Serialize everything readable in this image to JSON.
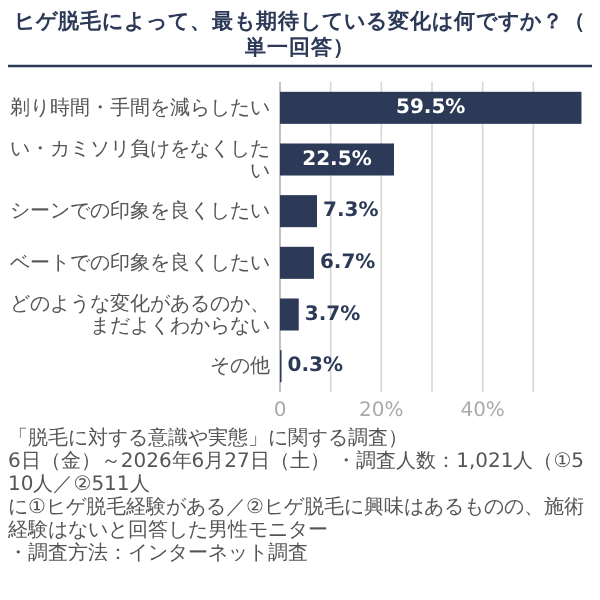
{
  "chart_data": {
    "type": "bar",
    "orientation": "horizontal",
    "title": "ヒゲ脱毛によって、最も期待している変化は何ですか？（単一回答）",
    "categories": [
      "剃り時間・手間を減らしたい",
      "い・カミソリ負けをなくしたい",
      "シーンでの印象を良くしたい",
      "ベートでの印象を良くしたい",
      "どのような変化があるのか、まだよくわからない",
      "その他"
    ],
    "values": [
      59.5,
      22.5,
      7.3,
      6.7,
      3.7,
      0.3
    ],
    "value_labels": [
      "59.5%",
      "22.5%",
      "7.3%",
      "6.7%",
      "3.7%",
      "0.3%"
    ],
    "color": "#2c3a57",
    "xlim": [
      0,
      60
    ],
    "xticks": [
      {
        "value": 0,
        "label": "0"
      },
      {
        "value": 10,
        "label": null
      },
      {
        "value": 20,
        "label": "20%"
      },
      {
        "value": 30,
        "label": null
      },
      {
        "value": 40,
        "label": "40%"
      },
      {
        "value": 50,
        "label": null
      }
    ],
    "grid": "x",
    "annotations": [
      "「脱毛に対する意識や実態」に関する調査）",
      "6日（金）～2026年6月27日（土） ・調査人数：1,021人（①510人／②511人",
      "に①ヒゲ脱毛経験がある／②ヒゲ脱毛に興味はあるものの、施術経験はないと回答した男性モニター",
      "・調査方法：インターネット調査"
    ]
  }
}
